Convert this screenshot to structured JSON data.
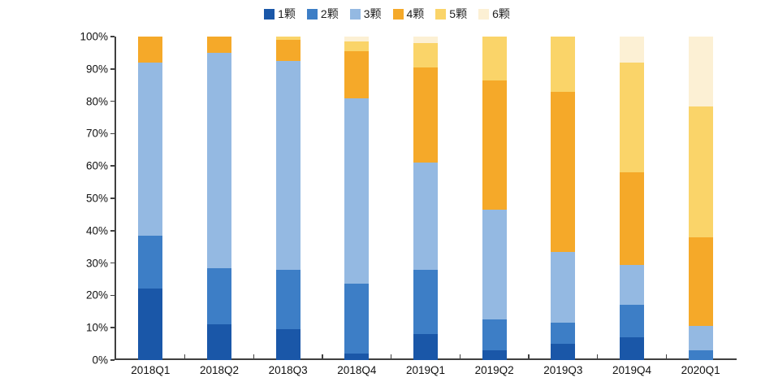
{
  "chart_data": {
    "type": "bar",
    "stacked": true,
    "units": "percent",
    "title": "",
    "xlabel": "",
    "ylabel": "",
    "ylim": [
      0,
      100
    ],
    "grid": false,
    "legend_position": "top-center",
    "categories": [
      "2018Q1",
      "2018Q2",
      "2018Q3",
      "2018Q4",
      "2019Q1",
      "2019Q2",
      "2019Q3",
      "2019Q4",
      "2020Q1"
    ],
    "series": [
      {
        "name": "1颗",
        "color": "#1a57a8",
        "values": [
          22.0,
          11.0,
          9.5,
          2.0,
          8.0,
          3.0,
          5.0,
          7.0,
          0.0
        ]
      },
      {
        "name": "2颗",
        "color": "#3d7ec6",
        "values": [
          16.5,
          17.5,
          18.5,
          21.5,
          20.0,
          9.5,
          6.5,
          10.0,
          3.0
        ]
      },
      {
        "name": "3颗",
        "color": "#94b9e2",
        "values": [
          53.5,
          66.5,
          64.5,
          57.5,
          33.0,
          34.0,
          22.0,
          12.5,
          7.5
        ]
      },
      {
        "name": "4颗",
        "color": "#f5a929",
        "values": [
          8.0,
          5.0,
          6.5,
          14.5,
          29.5,
          40.0,
          49.5,
          28.5,
          27.5
        ]
      },
      {
        "name": "5颗",
        "color": "#fad469",
        "values": [
          0.0,
          0.0,
          1.0,
          3.0,
          7.5,
          13.5,
          17.0,
          34.0,
          40.5
        ]
      },
      {
        "name": "6颗",
        "color": "#fcf0d4",
        "values": [
          0.0,
          0.0,
          0.0,
          1.5,
          2.0,
          0.0,
          0.0,
          8.0,
          21.5
        ]
      }
    ]
  },
  "y_axis": {
    "ticks": [
      "0%",
      "10%",
      "20%",
      "30%",
      "40%",
      "50%",
      "60%",
      "70%",
      "80%",
      "90%",
      "100%"
    ]
  },
  "colors": {
    "axis": "#404040",
    "background": "#ffffff"
  }
}
